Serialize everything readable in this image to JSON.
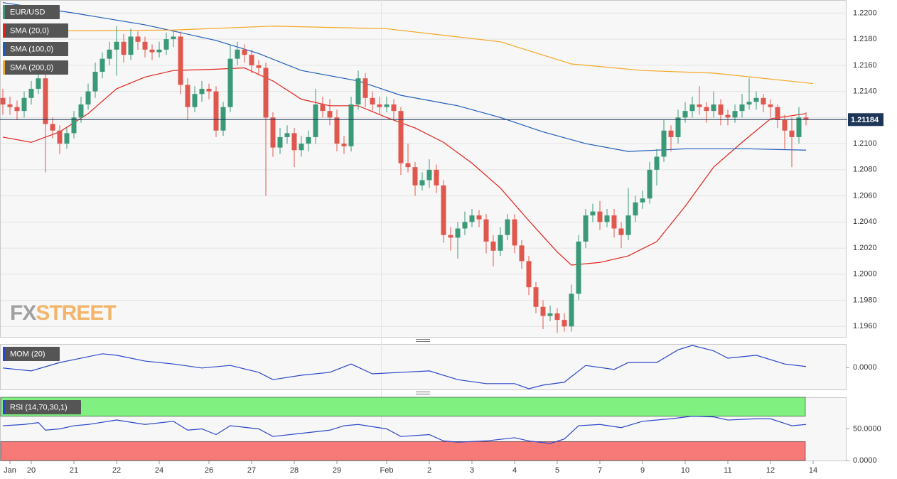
{
  "chart_data": [
    {
      "type": "candlestick",
      "name": "EUR/USD",
      "up_color": "#3a9a78",
      "down_color": "#e0574e",
      "ylim": [
        1.1952,
        1.221
      ],
      "yticks": [
        {
          "value": 1.22,
          "label": "1.2200"
        },
        {
          "value": 1.218,
          "label": "1.2180"
        },
        {
          "value": 1.216,
          "label": "1.2160"
        },
        {
          "value": 1.214,
          "label": "1.2140"
        },
        {
          "value": 1.212,
          "label": "1.2120"
        },
        {
          "value": 1.21,
          "label": "1.2100"
        },
        {
          "value": 1.208,
          "label": "1.2080"
        },
        {
          "value": 1.206,
          "label": "1.2060"
        },
        {
          "value": 1.204,
          "label": "1.2040"
        },
        {
          "value": 1.202,
          "label": "1.2020"
        },
        {
          "value": 1.2,
          "label": "1.2000"
        },
        {
          "value": 1.198,
          "label": "1.1980"
        },
        {
          "value": 1.196,
          "label": "1.1960"
        }
      ],
      "current_price": 1.21184,
      "xticks": [
        {
          "value": 1,
          "label": "Jan"
        },
        {
          "value": 4,
          "label": "20"
        },
        {
          "value": 10,
          "label": "21"
        },
        {
          "value": 16,
          "label": "22"
        },
        {
          "value": 22,
          "label": "24"
        },
        {
          "value": 29,
          "label": "26"
        },
        {
          "value": 35,
          "label": "27"
        },
        {
          "value": 41,
          "label": "28"
        },
        {
          "value": 47,
          "label": "29"
        },
        {
          "value": 54,
          "label": "Feb"
        },
        {
          "value": 60,
          "label": "2"
        },
        {
          "value": 66,
          "label": "3"
        },
        {
          "value": 72,
          "label": "4"
        },
        {
          "value": 78,
          "label": "5"
        },
        {
          "value": 84,
          "label": "7"
        },
        {
          "value": 90,
          "label": "9"
        },
        {
          "value": 96,
          "label": "10"
        },
        {
          "value": 102,
          "label": "11"
        },
        {
          "value": 108,
          "label": "12"
        },
        {
          "value": 114,
          "label": "14"
        }
      ],
      "watermark": [
        "FX",
        "STREET"
      ],
      "candles": [
        [
          1.2135,
          1.2142,
          1.2122,
          1.213
        ],
        [
          1.213,
          1.2136,
          1.2122,
          1.2128
        ],
        [
          1.2128,
          1.2133,
          1.2118,
          1.2125
        ],
        [
          1.2125,
          1.214,
          1.212,
          1.2135
        ],
        [
          1.2135,
          1.2148,
          1.213,
          1.2142
        ],
        [
          1.2142,
          1.2156,
          1.2138,
          1.215
        ],
        [
          1.215,
          1.2155,
          1.2078,
          1.2115
        ],
        [
          1.2115,
          1.212,
          1.2104,
          1.211
        ],
        [
          1.211,
          1.2114,
          1.2092,
          1.21
        ],
        [
          1.21,
          1.2112,
          1.2096,
          1.2108
        ],
        [
          1.2108,
          1.2125,
          1.2104,
          1.212
        ],
        [
          1.212,
          1.2136,
          1.2116,
          1.213
        ],
        [
          1.213,
          1.2146,
          1.2126,
          1.214
        ],
        [
          1.214,
          1.2162,
          1.2135,
          1.2155
        ],
        [
          1.2155,
          1.217,
          1.215,
          1.2165
        ],
        [
          1.2165,
          1.2178,
          1.216,
          1.2172
        ],
        [
          1.2172,
          1.219,
          1.2152,
          1.2178
        ],
        [
          1.2178,
          1.2184,
          1.2162,
          1.2168
        ],
        [
          1.2168,
          1.2188,
          1.2164,
          1.2182
        ],
        [
          1.2182,
          1.2186,
          1.2172,
          1.2178
        ],
        [
          1.2178,
          1.2182,
          1.2166,
          1.2172
        ],
        [
          1.2172,
          1.2176,
          1.2164,
          1.217
        ],
        [
          1.217,
          1.2178,
          1.2166,
          1.2172
        ],
        [
          1.2172,
          1.2185,
          1.2168,
          1.218
        ],
        [
          1.218,
          1.2186,
          1.2174,
          1.2182
        ],
        [
          1.2182,
          1.2186,
          1.2138,
          1.2145
        ],
        [
          1.2145,
          1.215,
          1.2118,
          1.2128
        ],
        [
          1.2128,
          1.2144,
          1.2124,
          1.2138
        ],
        [
          1.2138,
          1.2148,
          1.2132,
          1.2142
        ],
        [
          1.2142,
          1.2146,
          1.2134,
          1.214
        ],
        [
          1.214,
          1.2144,
          1.2105,
          1.211
        ],
        [
          1.211,
          1.2132,
          1.2106,
          1.2128
        ],
        [
          1.2128,
          1.2176,
          1.2124,
          1.2165
        ],
        [
          1.2165,
          1.2178,
          1.216,
          1.2172
        ],
        [
          1.2172,
          1.2176,
          1.2162,
          1.2168
        ],
        [
          1.2168,
          1.2172,
          1.2154,
          1.216
        ],
        [
          1.216,
          1.2164,
          1.2152,
          1.2158
        ],
        [
          1.2158,
          1.2162,
          1.206,
          1.212
        ],
        [
          1.212,
          1.2124,
          1.209,
          1.2097
        ],
        [
          1.2097,
          1.2112,
          1.2092,
          1.2105
        ],
        [
          1.2105,
          1.2114,
          1.21,
          1.2108
        ],
        [
          1.2108,
          1.2112,
          1.2082,
          1.2095
        ],
        [
          1.2095,
          1.2106,
          1.209,
          1.21
        ],
        [
          1.21,
          1.211,
          1.2094,
          1.2105
        ],
        [
          1.2105,
          1.2142,
          1.21,
          1.213
        ],
        [
          1.213,
          1.2136,
          1.212,
          1.2125
        ],
        [
          1.2125,
          1.2134,
          1.2114,
          1.212
        ],
        [
          1.212,
          1.2126,
          1.2094,
          1.21
        ],
        [
          1.21,
          1.2106,
          1.2092,
          1.2098
        ],
        [
          1.2098,
          1.2136,
          1.2094,
          1.213
        ],
        [
          1.213,
          1.2156,
          1.2126,
          1.215
        ],
        [
          1.215,
          1.2154,
          1.2128,
          1.2135
        ],
        [
          1.2135,
          1.214,
          1.2124,
          1.213
        ],
        [
          1.213,
          1.2136,
          1.2122,
          1.2128
        ],
        [
          1.2128,
          1.2136,
          1.2124,
          1.213
        ],
        [
          1.213,
          1.2134,
          1.2118,
          1.2125
        ],
        [
          1.2125,
          1.2128,
          1.2076,
          1.2085
        ],
        [
          1.2085,
          1.21,
          1.2078,
          1.2082
        ],
        [
          1.2082,
          1.2086,
          1.206,
          1.2068
        ],
        [
          1.2068,
          1.2078,
          1.2064,
          1.2072
        ],
        [
          1.2072,
          1.2088,
          1.2066,
          1.208
        ],
        [
          1.208,
          1.2084,
          1.2062,
          1.2068
        ],
        [
          1.2068,
          1.2072,
          1.2024,
          1.203
        ],
        [
          1.203,
          1.2036,
          1.2018,
          1.2028
        ],
        [
          1.2028,
          1.204,
          1.2012,
          1.2035
        ],
        [
          1.2035,
          1.2048,
          1.203,
          1.204
        ],
        [
          1.204,
          1.205,
          1.2036,
          1.2045
        ],
        [
          1.2045,
          1.2049,
          1.2036,
          1.2042
        ],
        [
          1.2042,
          1.2046,
          1.2016,
          1.2025
        ],
        [
          1.2025,
          1.203,
          1.2006,
          1.2018
        ],
        [
          1.2018,
          1.2036,
          1.2014,
          1.203
        ],
        [
          1.203,
          1.2046,
          1.2026,
          1.2042
        ],
        [
          1.2042,
          1.2046,
          1.2016,
          1.2022
        ],
        [
          1.2022,
          1.2026,
          1.2004,
          1.201
        ],
        [
          1.201,
          1.2014,
          1.1984,
          1.199
        ],
        [
          1.199,
          1.1994,
          1.197,
          1.1975
        ],
        [
          1.1975,
          1.198,
          1.1958,
          1.1968
        ],
        [
          1.1968,
          1.1976,
          1.1964,
          1.197
        ],
        [
          1.197,
          1.1974,
          1.1955,
          1.1965
        ],
        [
          1.1965,
          1.197,
          1.1956,
          1.196
        ],
        [
          1.196,
          1.1992,
          1.1956,
          1.1985
        ],
        [
          1.1985,
          1.203,
          1.198,
          1.2025
        ],
        [
          1.2025,
          1.205,
          1.202,
          1.2045
        ],
        [
          1.2045,
          1.2054,
          1.204,
          1.2048
        ],
        [
          1.2048,
          1.2056,
          1.2034,
          1.204
        ],
        [
          1.204,
          1.205,
          1.2036,
          1.2045
        ],
        [
          1.2045,
          1.205,
          1.2028,
          1.2035
        ],
        [
          1.2035,
          1.204,
          1.202,
          1.203
        ],
        [
          1.203,
          1.2066,
          1.2026,
          1.2045
        ],
        [
          1.2045,
          1.206,
          1.204,
          1.2055
        ],
        [
          1.2055,
          1.2064,
          1.205,
          1.2058
        ],
        [
          1.2058,
          1.2086,
          1.2054,
          1.208
        ],
        [
          1.208,
          1.2096,
          1.2068,
          1.209
        ],
        [
          1.209,
          1.2118,
          1.2086,
          1.211
        ],
        [
          1.211,
          1.2114,
          1.2094,
          1.2105
        ],
        [
          1.2105,
          1.2126,
          1.21,
          1.212
        ],
        [
          1.212,
          1.2132,
          1.2116,
          1.2125
        ],
        [
          1.2125,
          1.2136,
          1.212,
          1.213
        ],
        [
          1.213,
          1.2144,
          1.2122,
          1.2128
        ],
        [
          1.2128,
          1.2132,
          1.2116,
          1.2125
        ],
        [
          1.2125,
          1.214,
          1.212,
          1.213
        ],
        [
          1.213,
          1.2134,
          1.2114,
          1.2122
        ],
        [
          1.2122,
          1.2126,
          1.2114,
          1.212
        ],
        [
          1.212,
          1.213,
          1.2116,
          1.2125
        ],
        [
          1.2125,
          1.2138,
          1.212,
          1.213
        ],
        [
          1.213,
          1.215,
          1.2126,
          1.2132
        ],
        [
          1.2132,
          1.214,
          1.2126,
          1.2135
        ],
        [
          1.2135,
          1.2138,
          1.2124,
          1.213
        ],
        [
          1.213,
          1.2134,
          1.212,
          1.2128
        ],
        [
          1.2128,
          1.213,
          1.2112,
          1.2118
        ],
        [
          1.2118,
          1.2122,
          1.2096,
          1.211
        ],
        [
          1.211,
          1.212,
          1.2082,
          1.2105
        ],
        [
          1.2105,
          1.2128,
          1.21,
          1.212
        ],
        [
          1.212,
          1.2124,
          1.2114,
          1.21184
        ]
      ],
      "series": [
        {
          "name": "SMA (20,0)",
          "color": "#e3231c",
          "x": [
            0,
            4,
            8,
            12,
            16,
            20,
            24,
            30,
            34,
            38,
            42,
            46,
            50,
            54,
            58,
            62,
            66,
            70,
            74,
            78,
            80,
            84,
            88,
            92,
            96,
            100,
            104,
            108,
            113
          ],
          "values": [
            1.2105,
            1.2101,
            1.2109,
            1.2123,
            1.2142,
            1.2151,
            1.2156,
            1.2157,
            1.2158,
            1.2148,
            1.2134,
            1.2129,
            1.2129,
            1.212,
            1.2112,
            1.2101,
            1.2085,
            1.2066,
            1.2041,
            1.2017,
            1.2007,
            1.2009,
            1.2014,
            1.2025,
            1.2052,
            1.2082,
            1.2101,
            1.2119,
            1.2123
          ]
        },
        {
          "name": "SMA (100,0)",
          "color": "#1f5cb8",
          "x": [
            0,
            10,
            20,
            30,
            36,
            42,
            50,
            56,
            64,
            70,
            76,
            82,
            88,
            96,
            105,
            113
          ],
          "values": [
            1.2208,
            1.22,
            1.2191,
            1.2179,
            1.2169,
            1.2156,
            1.2148,
            1.2137,
            1.2129,
            1.212,
            1.2109,
            1.21,
            1.2094,
            1.2096,
            1.2096,
            1.2095
          ]
        },
        {
          "name": "SMA (200,0)",
          "color": "#f5a623",
          "x": [
            0,
            24,
            38,
            54,
            70,
            80,
            90,
            100,
            114
          ],
          "values": [
            1.2186,
            1.2187,
            1.219,
            1.2188,
            1.2178,
            1.2161,
            1.2156,
            1.2154,
            1.2146
          ]
        }
      ]
    },
    {
      "type": "line",
      "ylim": [
        -0.006,
        0.0065
      ],
      "yticks": [
        {
          "value": 0,
          "label": "0.0000"
        }
      ],
      "series": [
        {
          "name": "MOM (20)",
          "color": "#2a46c9",
          "x": [
            0,
            4,
            8,
            12,
            14,
            16,
            20,
            24,
            28,
            32,
            36,
            38,
            42,
            46,
            49,
            52,
            56,
            60,
            64,
            68,
            72,
            74,
            76,
            79,
            82,
            86,
            88,
            92,
            95,
            97,
            100,
            102,
            106,
            110,
            113
          ],
          "values": [
            -0.0001,
            -0.0009,
            0.0014,
            0.003,
            0.0038,
            0.0034,
            0.0018,
            0.001,
            -0.0001,
            0.0006,
            -0.0013,
            -0.0033,
            -0.0021,
            -0.0013,
            0.001,
            -0.0017,
            -0.0013,
            -0.0009,
            -0.0033,
            -0.0044,
            -0.0044,
            -0.0058,
            -0.0048,
            -0.004,
            0.0006,
            -0.0005,
            0.0014,
            0.0014,
            0.0049,
            0.0061,
            0.0046,
            0.0026,
            0.0034,
            0.001,
            0.0003
          ]
        }
      ]
    },
    {
      "type": "line",
      "ylim": [
        0,
        100
      ],
      "yticks": [
        {
          "value": 0,
          "label": "0.0000"
        },
        {
          "value": 50,
          "label": "50.0000"
        }
      ],
      "bands": [
        {
          "from": 70,
          "to": 100,
          "color": "#80f080"
        },
        {
          "from": 0,
          "to": 30,
          "color": "#f77a78"
        }
      ],
      "series": [
        {
          "name": "RSI (14,70,30,1)",
          "color": "#2a46c9",
          "x": [
            0,
            3,
            5,
            6,
            8,
            10,
            12,
            16,
            20,
            24,
            26,
            28,
            30,
            32,
            36,
            38,
            42,
            46,
            48,
            50,
            54,
            56,
            60,
            62,
            64,
            68,
            72,
            74,
            77,
            79,
            81,
            84,
            87,
            90,
            94,
            97,
            100,
            102,
            106,
            108,
            111,
            113
          ],
          "values": [
            55,
            57,
            60,
            48,
            50,
            55,
            57,
            64,
            57,
            62,
            48,
            50,
            41,
            55,
            50,
            38,
            43,
            48,
            55,
            57,
            50,
            38,
            41,
            31,
            29,
            31,
            36,
            31,
            27,
            34,
            55,
            57,
            52,
            62,
            66,
            70,
            69,
            64,
            66,
            66,
            55,
            57
          ]
        }
      ]
    }
  ]
}
